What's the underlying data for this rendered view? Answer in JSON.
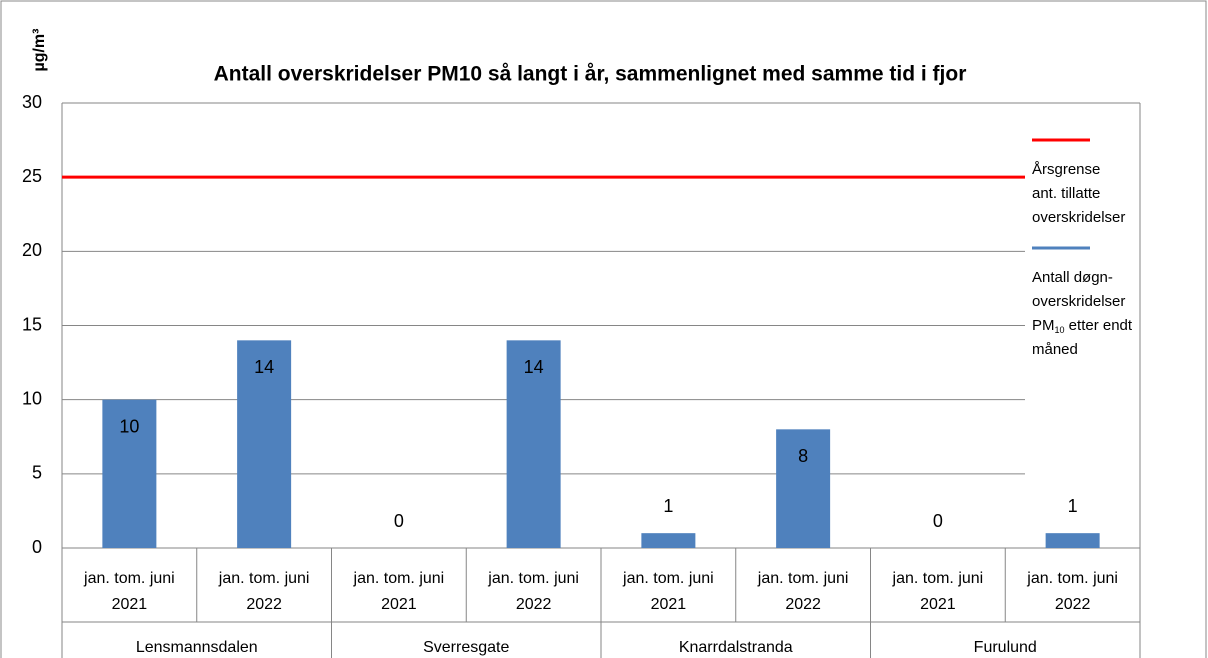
{
  "chart_data": {
    "type": "bar",
    "title": "Antall overskridelser PM10 så langt i år, sammenlignet med samme tid i fjor",
    "y_label": "µg/m³",
    "categories": [
      [
        "jan. tom. juni",
        "2021"
      ],
      [
        "jan. tom. juni",
        "2022"
      ],
      [
        "jan. tom. juni",
        "2021"
      ],
      [
        "jan. tom. juni",
        "2022"
      ],
      [
        "jan. tom. juni",
        "2021"
      ],
      [
        "jan. tom. juni",
        "2022"
      ],
      [
        "jan. tom. juni",
        "2021"
      ],
      [
        "jan. tom. juni",
        "2022"
      ]
    ],
    "groups": [
      "Lensmannsdalen",
      "Sverresgate",
      "Knarrdalstranda",
      "Furulund"
    ],
    "series": [
      {
        "name_lines": [
          "Antall døgn-",
          "overskridelser",
          {
            "text": "PM",
            "sub": "10",
            "rest": " etter endt"
          },
          "måned"
        ],
        "color": "#4f81bd",
        "values": [
          10,
          14,
          0,
          14,
          1,
          8,
          0,
          1
        ]
      }
    ],
    "reference_lines": [
      {
        "value": 25,
        "color": "#ff0000",
        "label_lines": [
          "Årsgrense",
          "ant. tillatte",
          "overskridelser"
        ]
      }
    ],
    "ylim": [
      0,
      30
    ],
    "yticks": [
      0,
      5,
      10,
      15,
      20,
      25,
      30
    ],
    "grid": true
  }
}
